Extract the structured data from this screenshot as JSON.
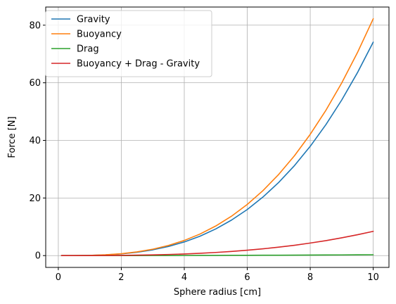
{
  "chart_data": {
    "type": "line",
    "xlabel": "Sphere radius [cm]",
    "ylabel": "Force [N]",
    "xlim": [
      -0.4,
      10.5
    ],
    "ylim": [
      -4.1,
      86.3
    ],
    "xticks": [
      0,
      2,
      4,
      6,
      8,
      10
    ],
    "yticks": [
      0,
      20,
      40,
      60,
      80
    ],
    "grid": true,
    "legend_position": "top-left",
    "x": [
      0.1,
      0.5,
      1,
      1.5,
      2,
      2.5,
      3,
      3.5,
      4,
      4.5,
      5,
      5.5,
      6,
      6.5,
      7,
      7.5,
      8,
      8.5,
      9,
      9.5,
      10
    ],
    "series": [
      {
        "name": "Gravity",
        "color": "#1f77b4",
        "values": [
          0.0001,
          0.009,
          0.074,
          0.25,
          0.59,
          1.16,
          2.0,
          3.18,
          4.74,
          6.75,
          9.26,
          12.33,
          16.0,
          20.35,
          25.42,
          31.26,
          37.94,
          45.51,
          54.02,
          63.53,
          74.1
        ]
      },
      {
        "name": "Buoyancy",
        "color": "#ff7f0e",
        "values": [
          0.0001,
          0.0103,
          0.082,
          0.28,
          0.66,
          1.29,
          2.22,
          3.53,
          5.26,
          7.49,
          10.28,
          13.68,
          17.76,
          22.58,
          28.21,
          34.69,
          42.11,
          50.5,
          59.95,
          70.5,
          82.23
        ]
      },
      {
        "name": "Drag",
        "color": "#2ca02c",
        "values": [
          0.0,
          0.0,
          0.0,
          0.01,
          0.01,
          0.02,
          0.03,
          0.04,
          0.05,
          0.06,
          0.07,
          0.09,
          0.1,
          0.12,
          0.14,
          0.16,
          0.19,
          0.21,
          0.24,
          0.27,
          0.3
        ]
      },
      {
        "name": "Buoyancy + Drag - Gravity",
        "color": "#d62728",
        "values": [
          0.0,
          0.001,
          0.008,
          0.04,
          0.08,
          0.15,
          0.25,
          0.39,
          0.57,
          0.8,
          1.09,
          1.44,
          1.86,
          2.35,
          2.93,
          3.59,
          4.36,
          5.2,
          6.17,
          7.24,
          8.43
        ]
      }
    ]
  }
}
